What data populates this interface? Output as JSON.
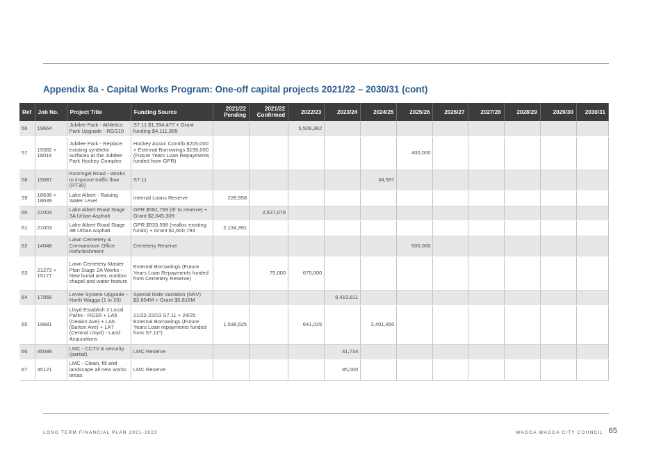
{
  "title": "Appendix 8a - Capital Works Program: One-off capital projects 2021/22 – 2030/31 (cont)",
  "columns": {
    "ref": "Ref",
    "job": "Job No.",
    "project": "Project Title",
    "funding": "Funding Source",
    "pending_l1": "2021/22",
    "pending_l2": "Pending",
    "confirmed_l1": "2021/22",
    "confirmed_l2": "Confirmed",
    "y2223": "2022/23",
    "y2324": "2023/24",
    "y2425": "2024/25",
    "y2526": "2025/26",
    "y2627": "2026/27",
    "y2728": "2027/28",
    "y2829": "2028/29",
    "y2930": "2029/30",
    "y3031": "2030/31"
  },
  "rows": [
    {
      "ref": "56",
      "job": "19664",
      "project": "Jubilee Park - Athletics Park Upgrade - RGS10",
      "funding": "S7.11 $1,394,477 + Grant funding $4,111,885",
      "pending": "",
      "confirmed": "",
      "y2223": "5,506,362",
      "y2324": "",
      "y2425": "",
      "y2526": ""
    },
    {
      "ref": "57",
      "job": "19382 + 18016",
      "project": "Jubilee Park - Replace existing synthetic surfaces at the Jubilee Park Hockey Complex",
      "funding": "Hockey Assoc Contrib $205,000 + External Borrowings $195,000 (Future Years Loan Repayments funded from GPR)",
      "pending": "",
      "confirmed": "",
      "y2223": "",
      "y2324": "",
      "y2425": "",
      "y2526": "400,000"
    },
    {
      "ref": "58",
      "job": "15087",
      "project": "Kooringal Road - Works to improve traffic flow (RT30)",
      "funding": "S7.11",
      "pending": "",
      "confirmed": "",
      "y2223": "",
      "y2324": "",
      "y2425": "34,587",
      "y2526": ""
    },
    {
      "ref": "59",
      "job": "18638 + 18639",
      "project": "Lake Albert - Raising Water Level",
      "funding": "Internal Loans Reserve",
      "pending": "228,958",
      "confirmed": "",
      "y2223": "",
      "y2324": "",
      "y2425": "",
      "y2526": ""
    },
    {
      "ref": "60",
      "job": "21004",
      "project": "Lake Albert Road Stage 3A Urban Asphalt",
      "funding": "GPR $581,769 (tfr to reserve) + Grant $2,045,309",
      "pending": "",
      "confirmed": "2,627,078",
      "y2223": "",
      "y2324": "",
      "y2425": "",
      "y2526": ""
    },
    {
      "ref": "61",
      "job": "21003",
      "project": "Lake Albert Road Stage 3B Urban Asphalt",
      "funding": "GPR $533,598 (realloc existing funds) + Grant $1,600,793",
      "pending": "2,134,391",
      "confirmed": "",
      "y2223": "",
      "y2324": "",
      "y2425": "",
      "y2526": ""
    },
    {
      "ref": "62",
      "job": "14048",
      "project": "Lawn Cemetery & Crematorium Office Refurbishment",
      "funding": "Cemetery Reserve",
      "pending": "",
      "confirmed": "",
      "y2223": "",
      "y2324": "",
      "y2425": "",
      "y2526": "500,000"
    },
    {
      "ref": "63",
      "job": "21273 + 15177",
      "project": "Lawn Cemetery Master Plan Stage 2A Works - New burial area, outdoor chapel and water feature",
      "funding": "External Borrowings (Future Years Loan Repayments funded from Cemetery Reserve)",
      "pending": "",
      "confirmed": "75,000",
      "y2223": "675,000",
      "y2324": "",
      "y2425": "",
      "y2526": ""
    },
    {
      "ref": "64",
      "job": "17866",
      "project": "Levee System Upgrade - North Wagga (1 in 20)",
      "funding": "Special Rate Variation (SRV) $2.604M + Grant $5.816M",
      "pending": "",
      "confirmed": "",
      "y2223": "",
      "y2324": "8,419,811",
      "y2425": "",
      "y2526": ""
    },
    {
      "ref": "65",
      "job": "19681",
      "project": "Lloyd Establish 3 Local Parks - RGS5 + LA5 (Deakin Ave) + LA6 (Barton Ave) + LA7 (Central Lloyd) - Land Acquisitions",
      "funding": "21/22-22/23 S7.11 + 24/25 External Borrowings (Future Years Loan repayments funded from S7.11*)",
      "pending": "1,538,625",
      "confirmed": "",
      "y2223": "641,025",
      "y2324": "",
      "y2425": "2,401,850",
      "y2526": ""
    },
    {
      "ref": "66",
      "job": "45089",
      "project": "LMC - CCTV & security (partial)",
      "funding": "LMC Reserve",
      "pending": "",
      "confirmed": "",
      "y2223": "",
      "y2324": "41,734",
      "y2425": "",
      "y2526": ""
    },
    {
      "ref": "67",
      "job": "45121",
      "project": "LMC - Clean, fill and landscape all new works areas",
      "funding": "LMC Reserve",
      "pending": "",
      "confirmed": "",
      "y2223": "",
      "y2324": "85,000",
      "y2425": "",
      "y2526": ""
    }
  ],
  "footer": {
    "left": "LONG TERM FINANCIAL PLAN 2021-2022",
    "right": "WAGGA WAGGA CITY COUNCIL",
    "page": "65"
  }
}
